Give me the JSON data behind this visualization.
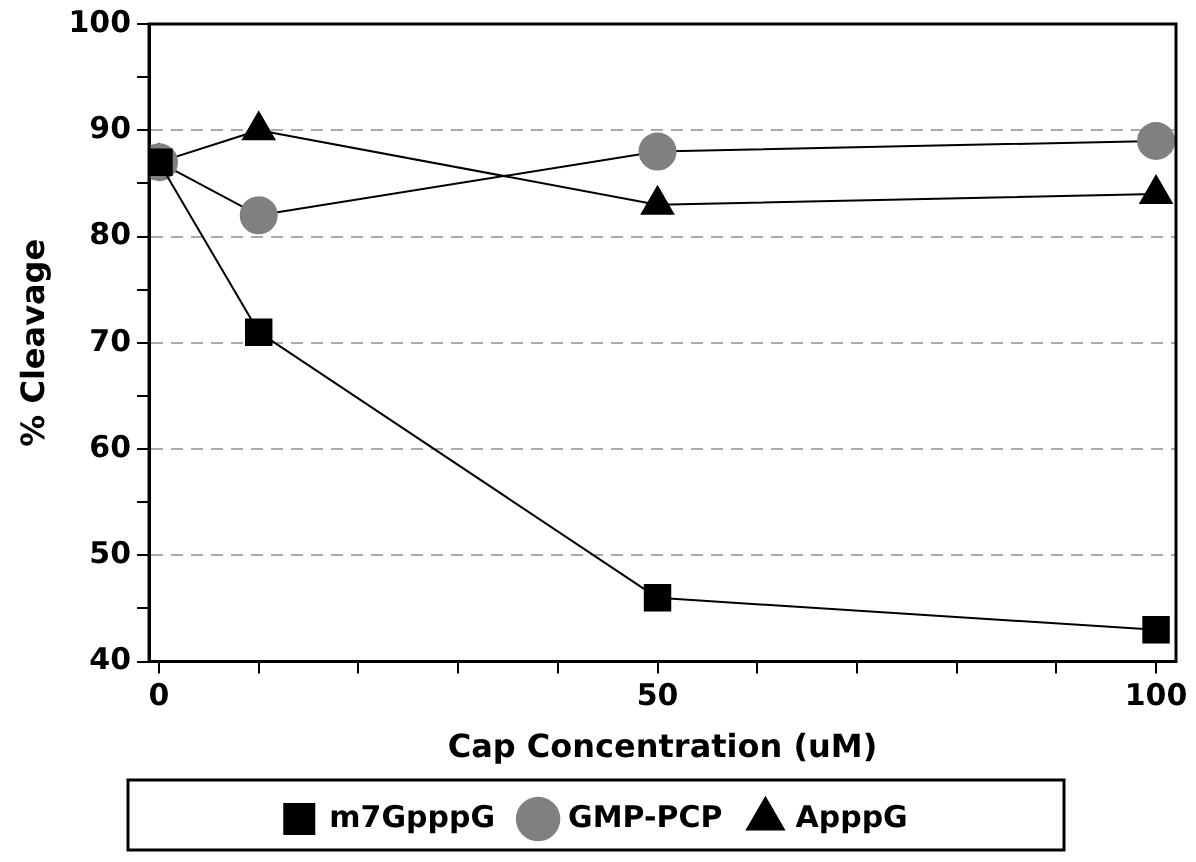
{
  "chart_data": {
    "type": "line",
    "xlabel": "Cap Concentration (uM)",
    "ylabel": "% Cleavage",
    "x": [
      0,
      10,
      50,
      100
    ],
    "series": [
      {
        "name": "m7GpppG",
        "color": "#000000",
        "marker": "square",
        "values": [
          87,
          71,
          46,
          43
        ]
      },
      {
        "name": "GMP-PCP",
        "color": "#808080",
        "marker": "circle",
        "values": [
          87,
          82,
          88,
          89
        ]
      },
      {
        "name": "ApppG",
        "color": "#000000",
        "marker": "triangle",
        "values": [
          87,
          90,
          83,
          84
        ]
      }
    ],
    "xlim": [
      -1,
      102
    ],
    "xticks": [
      0,
      {
        "value": 10,
        "label": null
      },
      {
        "value": 20,
        "label": null
      },
      {
        "value": 30,
        "label": null
      },
      {
        "value": 40,
        "label": null
      },
      50,
      {
        "value": 60,
        "label": null
      },
      {
        "value": 70,
        "label": null
      },
      {
        "value": 80,
        "label": null
      },
      {
        "value": 90,
        "label": null
      },
      100
    ],
    "ylim": [
      40,
      100
    ],
    "yticks": [
      40,
      {
        "value": 45,
        "label": null
      },
      50,
      {
        "value": 55,
        "label": null
      },
      60,
      {
        "value": 65,
        "label": null
      },
      70,
      {
        "value": 75,
        "label": null
      },
      80,
      {
        "value": 85,
        "label": null
      },
      90,
      {
        "value": 95,
        "label": null
      },
      100
    ],
    "grid": "y",
    "legend": "bottom",
    "line_style": "solid"
  }
}
